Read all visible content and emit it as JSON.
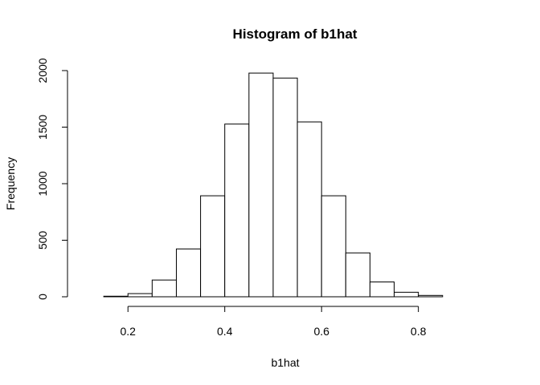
{
  "chart_data": {
    "type": "bar",
    "title": "Histogram of b1hat",
    "xlabel": "b1hat",
    "ylabel": "Frequency",
    "bins": [
      {
        "x0": 0.1,
        "x1": 0.15,
        "count": 0
      },
      {
        "x0": 0.15,
        "x1": 0.2,
        "count": 5
      },
      {
        "x0": 0.2,
        "x1": 0.25,
        "count": 28
      },
      {
        "x0": 0.25,
        "x1": 0.3,
        "count": 148
      },
      {
        "x0": 0.3,
        "x1": 0.35,
        "count": 423
      },
      {
        "x0": 0.35,
        "x1": 0.4,
        "count": 893
      },
      {
        "x0": 0.4,
        "x1": 0.45,
        "count": 1527
      },
      {
        "x0": 0.45,
        "x1": 0.5,
        "count": 1978
      },
      {
        "x0": 0.5,
        "x1": 0.55,
        "count": 1934
      },
      {
        "x0": 0.55,
        "x1": 0.6,
        "count": 1546
      },
      {
        "x0": 0.6,
        "x1": 0.65,
        "count": 893
      },
      {
        "x0": 0.65,
        "x1": 0.7,
        "count": 388
      },
      {
        "x0": 0.7,
        "x1": 0.75,
        "count": 131
      },
      {
        "x0": 0.75,
        "x1": 0.8,
        "count": 40
      },
      {
        "x0": 0.8,
        "x1": 0.85,
        "count": 12
      },
      {
        "x0": 0.85,
        "x1": 0.9,
        "count": 0
      },
      {
        "x0": 0.9,
        "x1": 0.95,
        "count": 0
      }
    ],
    "xlim": [
      0.1,
      0.95
    ],
    "ylim": [
      0,
      2000
    ],
    "xticks": [
      0.2,
      0.4,
      0.6,
      0.8
    ],
    "xtick_labels": [
      "0.2",
      "0.4",
      "0.6",
      "0.8"
    ],
    "yticks": [
      0,
      500,
      1000,
      1500,
      2000
    ],
    "ytick_labels": [
      "0",
      "500",
      "1000",
      "1500",
      "2000"
    ],
    "grid": false,
    "bar_fill": "#ffffff",
    "bar_stroke": "#000000"
  }
}
